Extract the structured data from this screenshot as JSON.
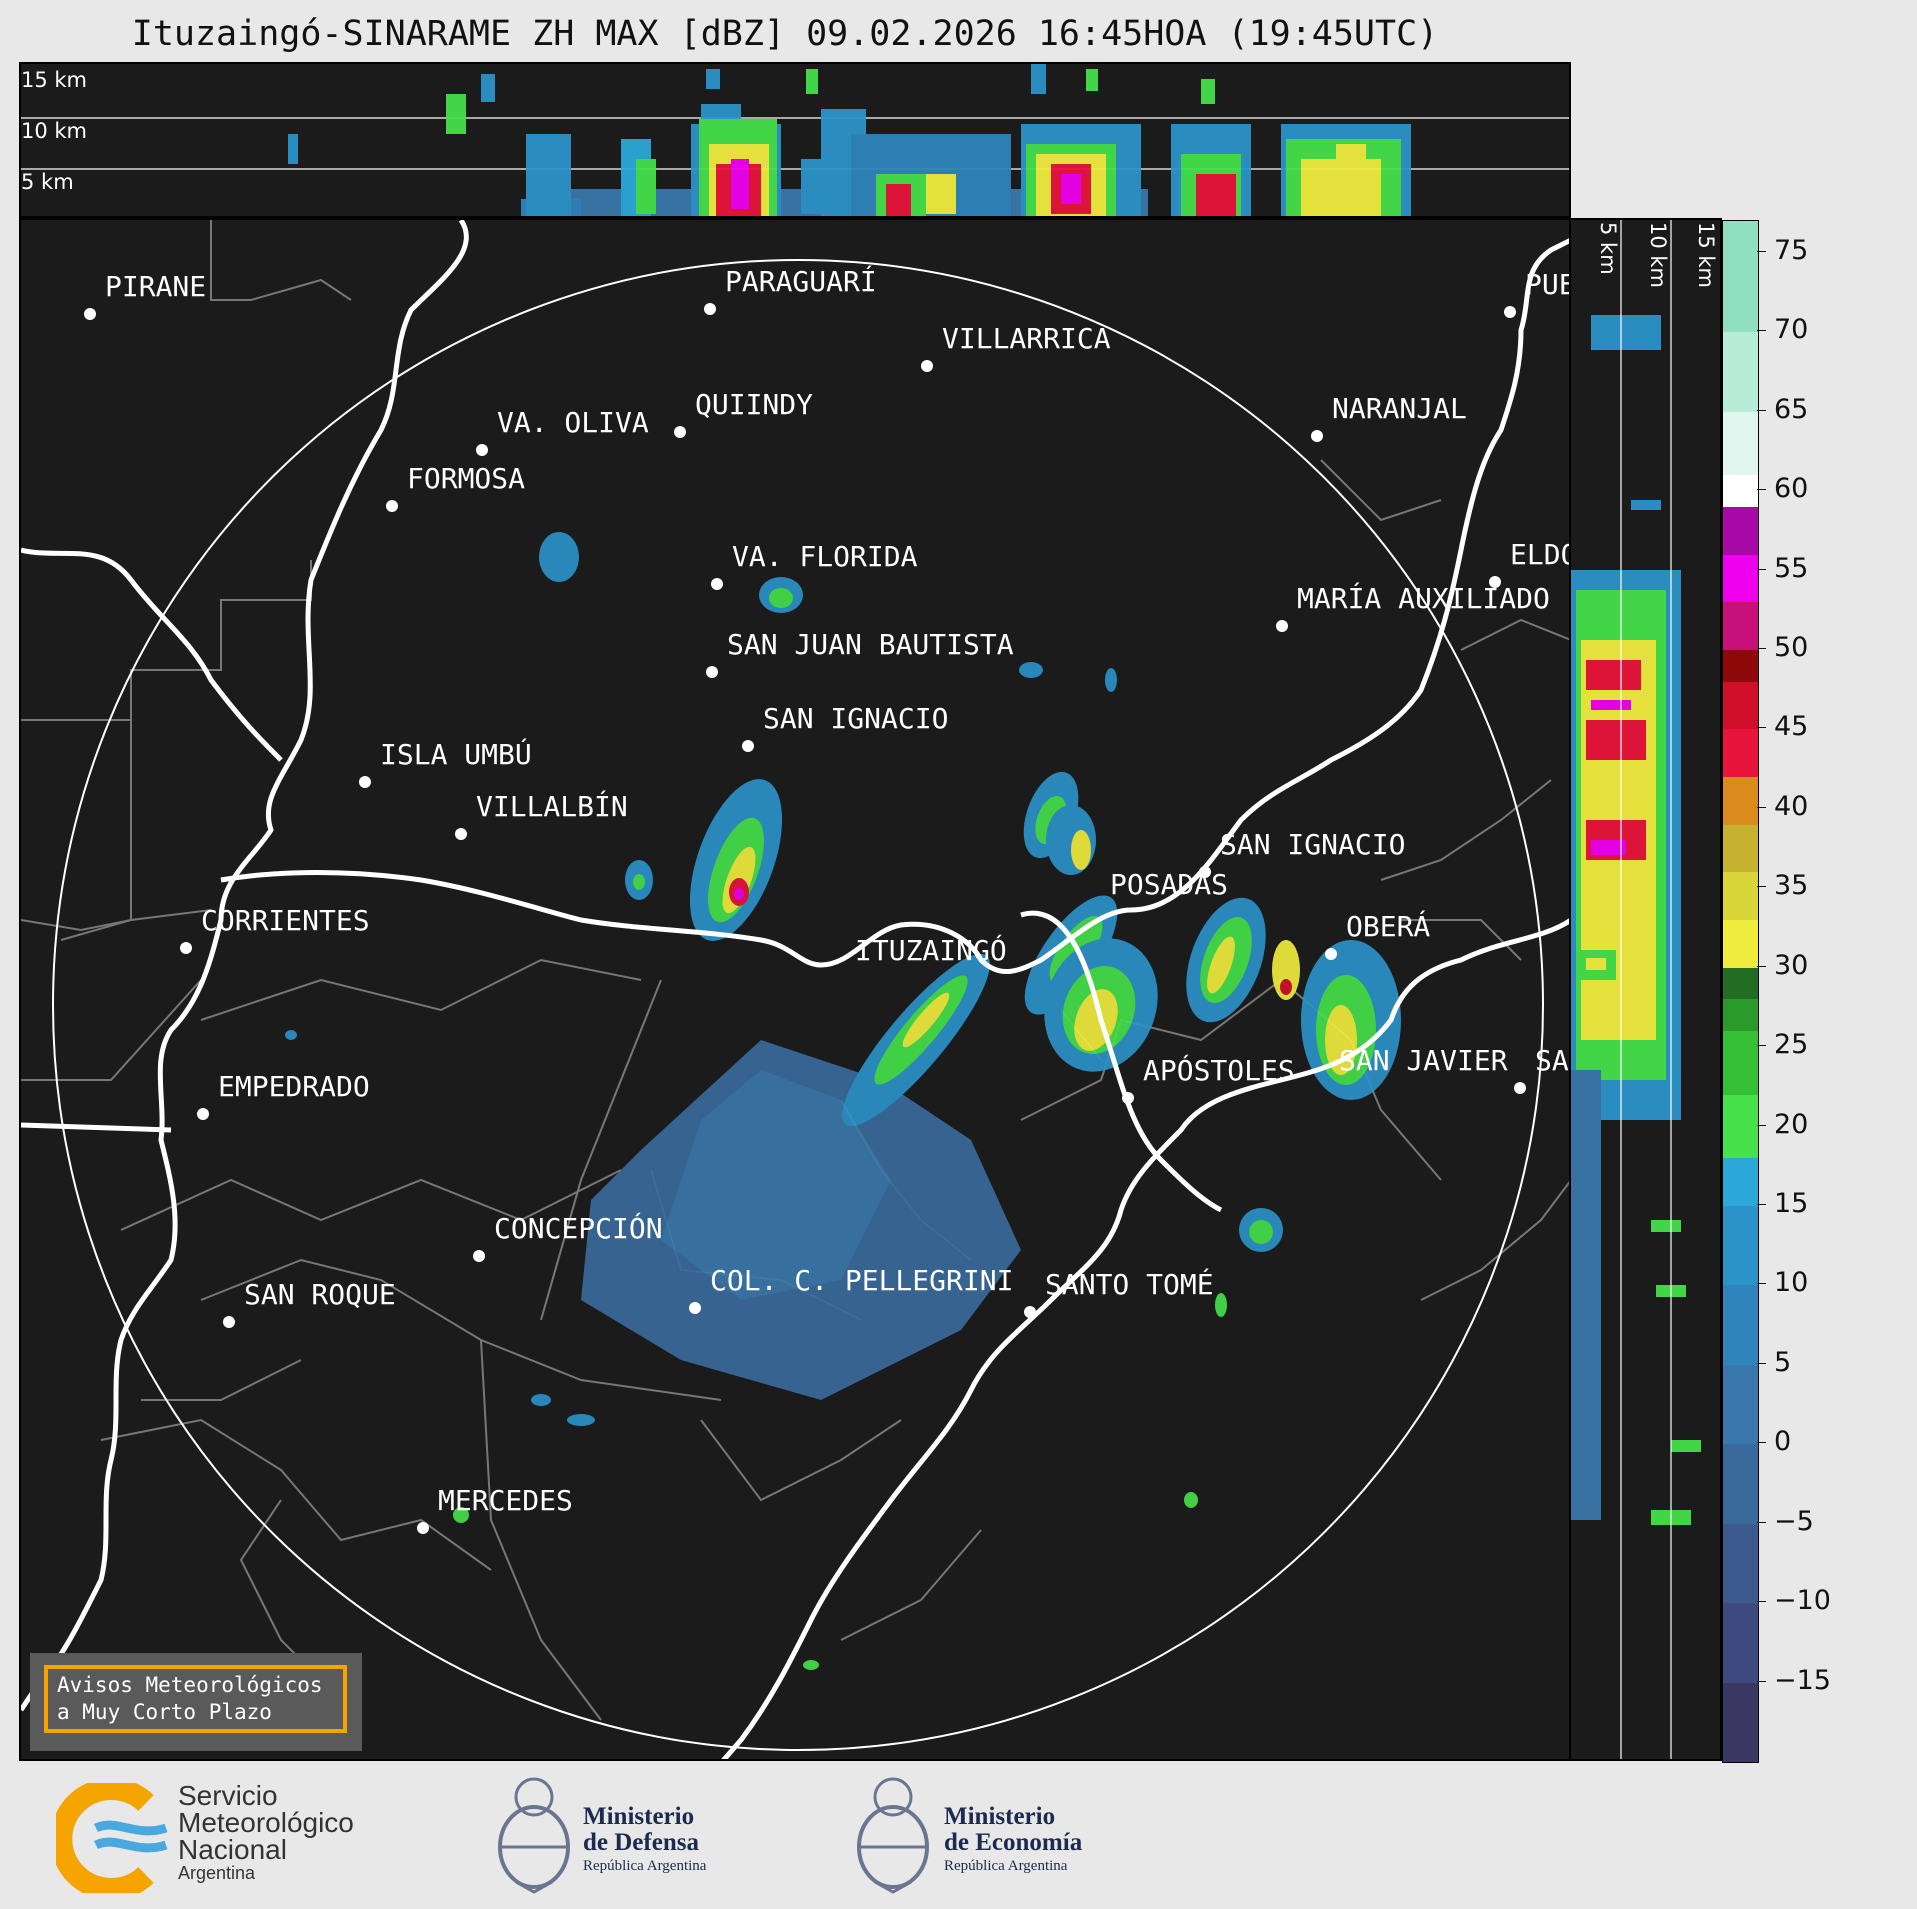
{
  "title": "Ituzaingó-SINARAME ZH MAX [dBZ] 09.02.2026 16:45HOA (19:45UTC)",
  "top_panel": {
    "height_labels": [
      "15 km",
      "10 km",
      "5 km"
    ]
  },
  "side_panel": {
    "height_labels": [
      "5 km",
      "10 km",
      "15 km"
    ]
  },
  "colorbar": {
    "ticks": [
      "75",
      "70",
      "65",
      "60",
      "55",
      "50",
      "45",
      "40",
      "35",
      "30",
      "25",
      "20",
      "15",
      "10",
      "5",
      "0",
      "−5",
      "−10",
      "−15"
    ],
    "range": [
      -20,
      77
    ],
    "stops": [
      {
        "from": -20,
        "color": "#3a3760"
      },
      {
        "from": -15,
        "color": "#3c4a80"
      },
      {
        "from": -10,
        "color": "#3d5a8e"
      },
      {
        "from": -5,
        "color": "#3a6a9c"
      },
      {
        "from": 0,
        "color": "#3a77ab"
      },
      {
        "from": 5,
        "color": "#2f84bb"
      },
      {
        "from": 10,
        "color": "#2b93c8"
      },
      {
        "from": 15,
        "color": "#2ba8d8"
      },
      {
        "from": 18,
        "color": "#45e04a"
      },
      {
        "from": 22,
        "color": "#34bf35"
      },
      {
        "from": 26,
        "color": "#2a9a2a"
      },
      {
        "from": 28,
        "color": "#236c23"
      },
      {
        "from": 30,
        "color": "#f0ec3e"
      },
      {
        "from": 33,
        "color": "#d8d638"
      },
      {
        "from": 36,
        "color": "#c5b22e"
      },
      {
        "from": 39,
        "color": "#d98b1e"
      },
      {
        "from": 42,
        "color": "#e8143c"
      },
      {
        "from": 45,
        "color": "#d0102a"
      },
      {
        "from": 48,
        "color": "#8e0a0a"
      },
      {
        "from": 50,
        "color": "#c8107a"
      },
      {
        "from": 53,
        "color": "#ee00ee"
      },
      {
        "from": 56,
        "color": "#a80aa8"
      },
      {
        "from": 59,
        "color": "#ffffff"
      },
      {
        "from": 61,
        "color": "#e0f6ee"
      },
      {
        "from": 65,
        "color": "#b6ecd8"
      },
      {
        "from": 70,
        "color": "#8ee0c0"
      }
    ]
  },
  "cities": [
    {
      "name": "PIRANE"
    },
    {
      "name": "PARAGUARÍ"
    },
    {
      "name": "VILLARRICA"
    },
    {
      "name": "VA. OLIVA"
    },
    {
      "name": "QUIINDY"
    },
    {
      "name": "NARANJAL"
    },
    {
      "name": "FORMOSA"
    },
    {
      "name": "PUE"
    },
    {
      "name": "ELDO"
    },
    {
      "name": "VA. FLORIDA"
    },
    {
      "name": "MARÍA AUXILIADO"
    },
    {
      "name": "SAN JUAN BAUTISTA"
    },
    {
      "name": "SAN IGNACIO"
    },
    {
      "name": "ISLA UMBÚ"
    },
    {
      "name": "VILLALBÍN"
    },
    {
      "name": "SAN IGNACIO"
    },
    {
      "name": "POSADAS"
    },
    {
      "name": "CORRIENTES"
    },
    {
      "name": "ITUZAINGÓ"
    },
    {
      "name": "OBERÁ"
    },
    {
      "name": "EMPEDRADO"
    },
    {
      "name": "APÓSTOLES"
    },
    {
      "name": "SAN JAVIER"
    },
    {
      "name": "SA"
    },
    {
      "name": "CONCEPCIÓN"
    },
    {
      "name": "COL. C. PELLEGRINI"
    },
    {
      "name": "SANTO TOMÉ"
    },
    {
      "name": "SAN ROQUE"
    },
    {
      "name": "MERCEDES"
    }
  ],
  "alert": {
    "line1": "Avisos Meteorológicos",
    "line2": "a Muy Corto Plazo"
  },
  "logos": {
    "smn": {
      "line1": "Servicio",
      "line2": "Meteorológico",
      "line3": "Nacional",
      "line4": "Argentina"
    },
    "defensa": {
      "line1": "Ministerio",
      "line2": "de Defensa",
      "line3": "República Argentina"
    },
    "economia": {
      "line1": "Ministerio",
      "line2": "de Economía",
      "line3": "República Argentina"
    }
  }
}
